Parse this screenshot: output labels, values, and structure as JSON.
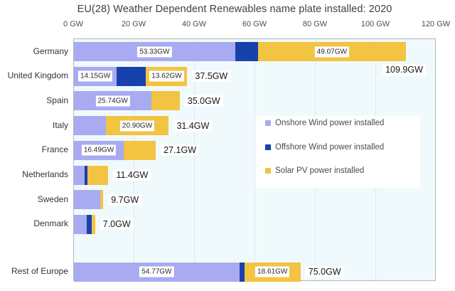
{
  "title": "EU(28) Weather Dependent Renewables name plate installed:  2020",
  "axis": {
    "ticks": [
      "0 GW",
      "20 GW",
      "40 GW",
      "60 GW",
      "80 GW",
      "100 GW",
      "120 GW"
    ]
  },
  "legend": {
    "items": [
      {
        "key": "onshore",
        "label": "Onshore Wind power installed"
      },
      {
        "key": "offshore",
        "label": "Offshore Wind power installed"
      },
      {
        "key": "solar",
        "label": "Solar PV power installed"
      }
    ]
  },
  "colors": {
    "onshore": "#a8aaf2",
    "offshore": "#1742ad",
    "solar": "#f3c342",
    "plot_bg": "#f0fafc",
    "grid": "#dde8ee",
    "border": "#b6b6b6"
  },
  "chart_data": {
    "type": "bar",
    "orientation": "horizontal",
    "stacked": true,
    "unit": "GW",
    "title": "EU(28) Weather Dependent Renewables name plate installed:  2020",
    "xlim": [
      0,
      120
    ],
    "x_ticks_gw": [
      0,
      20,
      40,
      60,
      80,
      100,
      120
    ],
    "grid": true,
    "legend_position": "center-right",
    "series_names": [
      "Onshore Wind power installed",
      "Offshore Wind power installed",
      "Solar PV power installed"
    ],
    "categories": [
      "Germany",
      "United Kingdom",
      "Spain",
      "Italy",
      "France",
      "Netherlands",
      "Sweden",
      "Denmark",
      "Rest of Europe"
    ],
    "rows": [
      {
        "name": "Germany",
        "onshore": 53.33,
        "offshore": 7.5,
        "solar": 49.07,
        "total": 109.9,
        "total_label": "109.9GW",
        "value_labels": {
          "onshore": "53.33GW",
          "solar": "49.07GW"
        },
        "total_placement": "below"
      },
      {
        "name": "United Kingdom",
        "onshore": 14.15,
        "offshore": 9.73,
        "solar": 13.62,
        "total": 37.5,
        "total_label": "37.5GW",
        "value_labels": {
          "onshore": "14.15GW",
          "solar": "13.62GW"
        },
        "total_placement": "right"
      },
      {
        "name": "Spain",
        "onshore": 25.74,
        "offshore": 0,
        "solar": 9.26,
        "total": 35.0,
        "total_label": "35.0GW",
        "value_labels": {
          "onshore": "25.74GW"
        },
        "total_placement": "right"
      },
      {
        "name": "Italy",
        "onshore": 10.5,
        "offshore": 0,
        "solar": 20.9,
        "total": 31.4,
        "total_label": "31.4GW",
        "value_labels": {
          "solar": "20.90GW"
        },
        "total_placement": "right"
      },
      {
        "name": "France",
        "onshore": 16.49,
        "offshore": 0,
        "solar": 10.61,
        "total": 27.1,
        "total_label": "27.1GW",
        "value_labels": {
          "onshore": "16.49GW"
        },
        "total_placement": "right"
      },
      {
        "name": "Netherlands",
        "onshore": 3.5,
        "offshore": 1.0,
        "solar": 6.9,
        "total": 11.4,
        "total_label": "11.4GW",
        "value_labels": {},
        "total_placement": "right"
      },
      {
        "name": "Sweden",
        "onshore": 8.8,
        "offshore": 0,
        "solar": 0.9,
        "total": 9.7,
        "total_label": "9.7GW",
        "value_labels": {},
        "total_placement": "right"
      },
      {
        "name": "Denmark",
        "onshore": 4.2,
        "offshore": 1.8,
        "solar": 1.0,
        "total": 7.0,
        "total_label": "7.0GW",
        "value_labels": {},
        "total_placement": "right"
      },
      {
        "name": "Rest of Europe",
        "onshore": 54.77,
        "offshore": 1.62,
        "solar": 18.61,
        "total": 75.0,
        "total_label": "75.0GW",
        "value_labels": {
          "onshore": "54.77GW",
          "solar": "18.61GW"
        },
        "total_placement": "right"
      }
    ]
  }
}
